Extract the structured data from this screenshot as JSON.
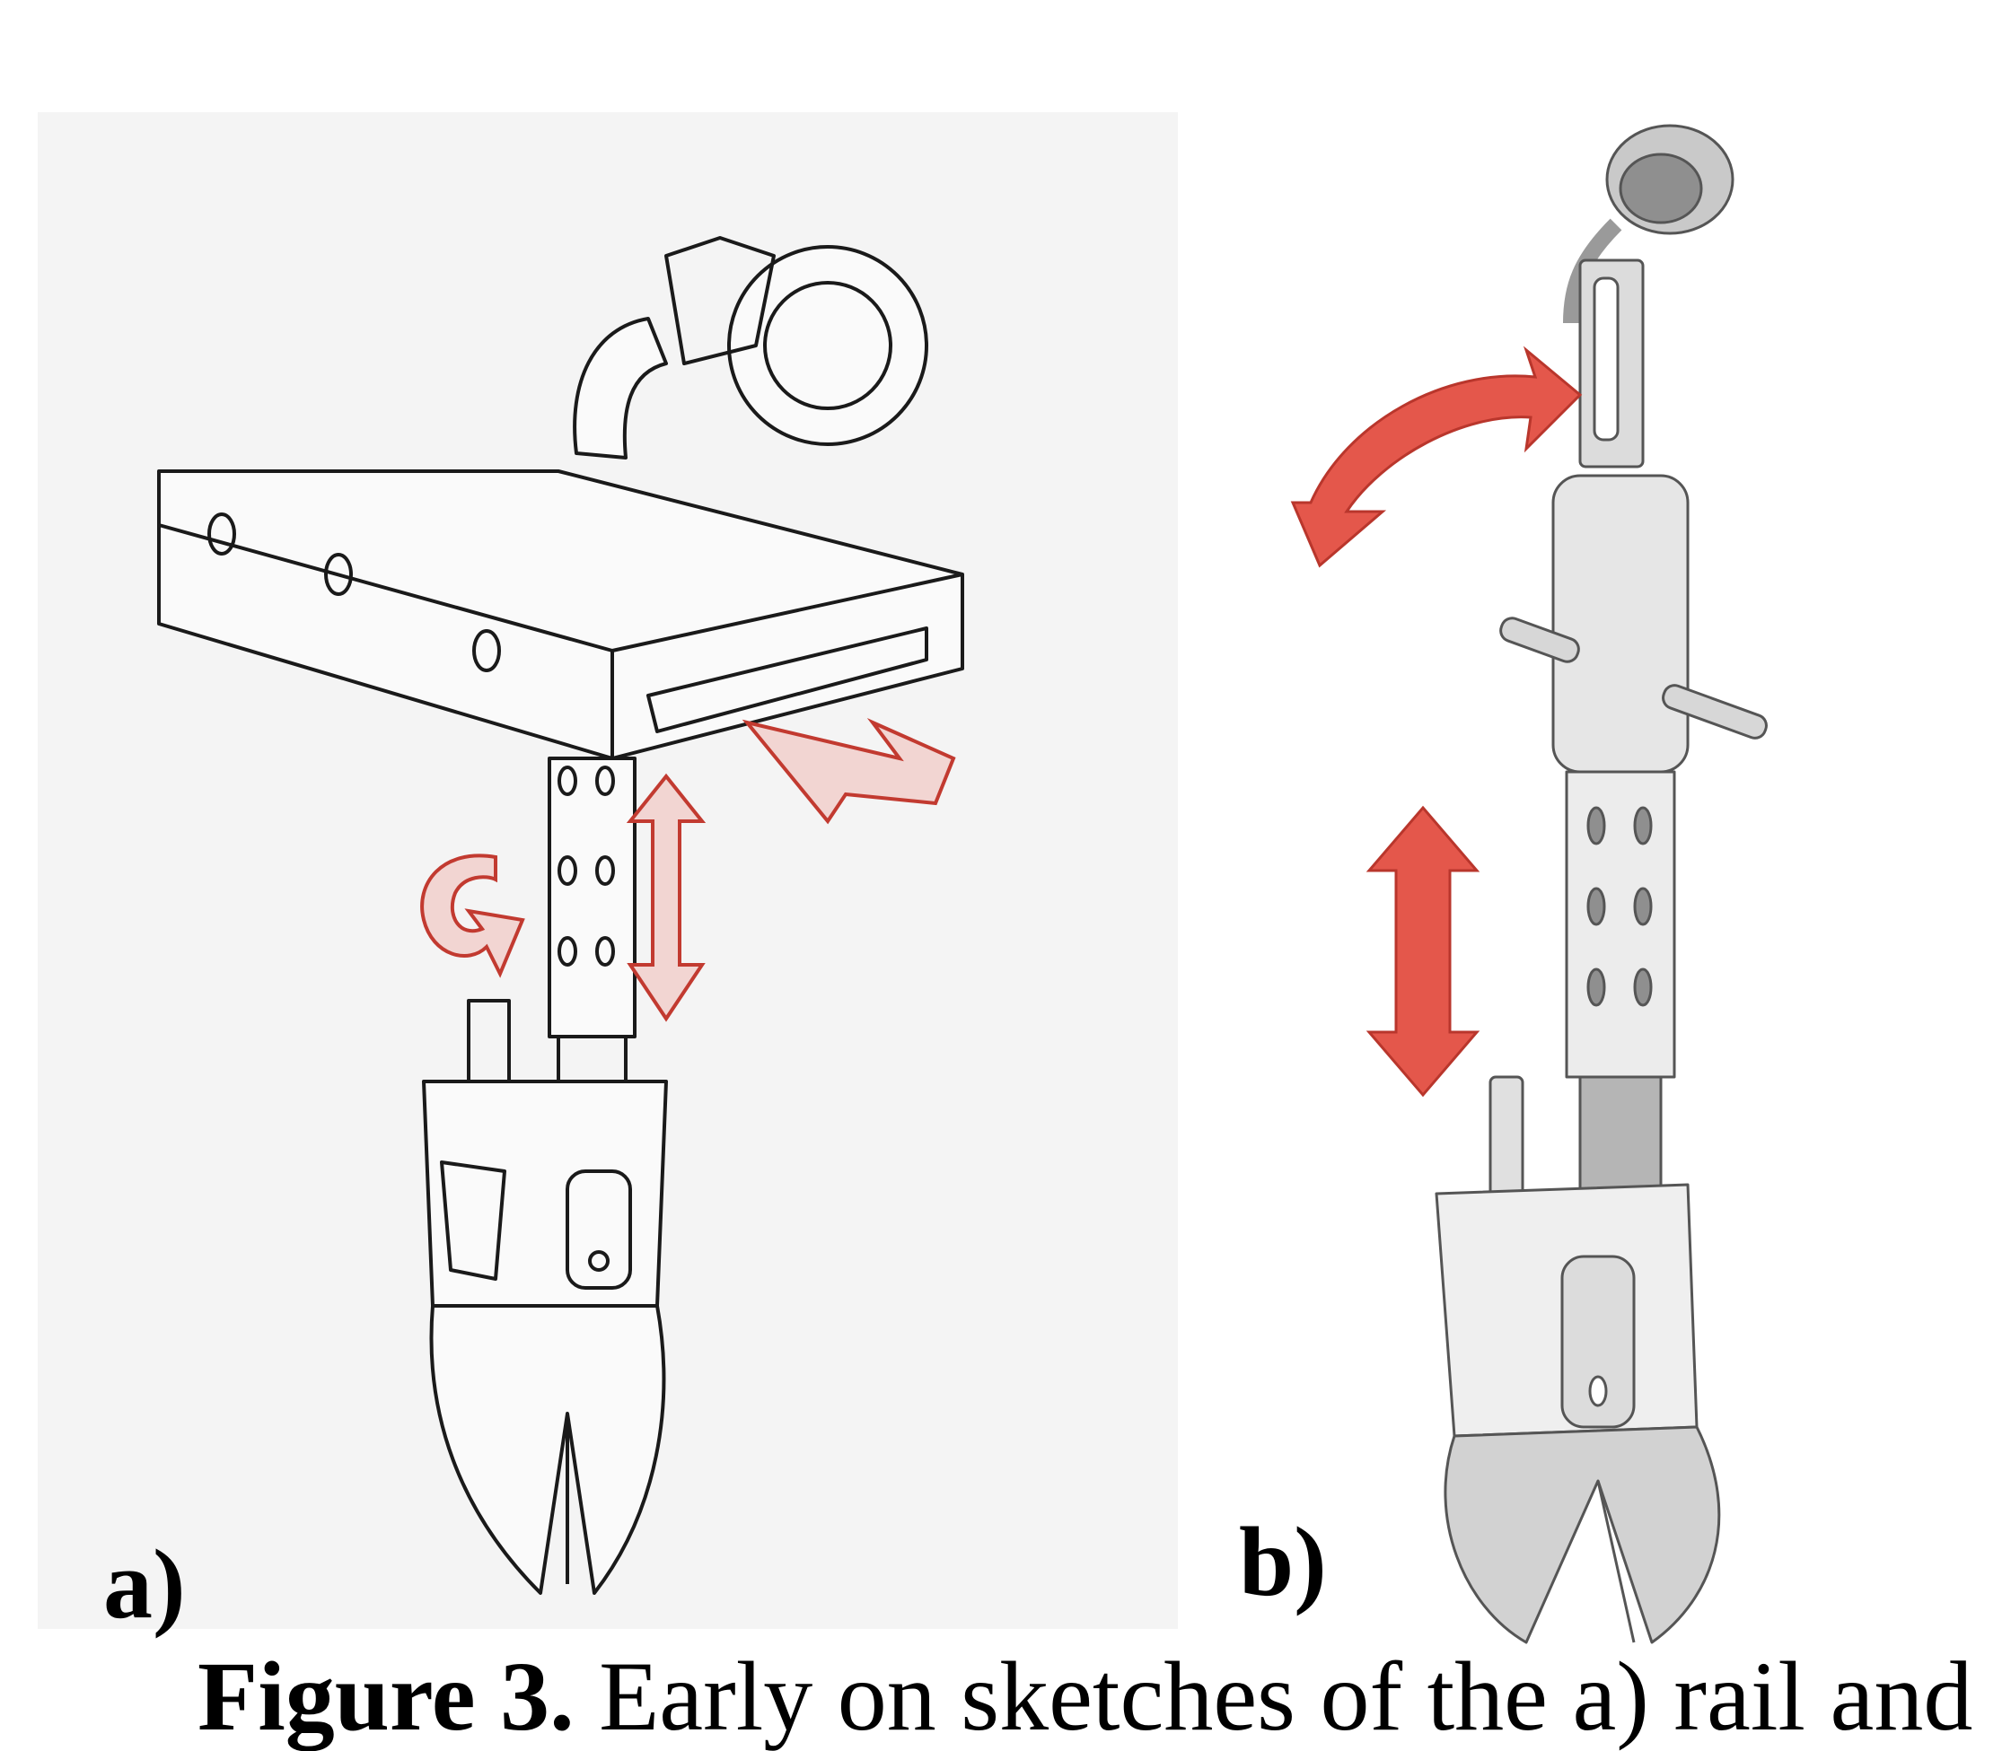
{
  "figure": {
    "panel_a_label": "a)",
    "panel_b_label": "b)",
    "caption_bold": "Figure 3.",
    "caption_text": " Early on sketches of the a) rail and"
  },
  "colors": {
    "accent_red": "#d9473b",
    "line_ink": "#1a1a1a",
    "panel_a_bg": "#f4f4f4",
    "metal_gray": "#b9b9b9"
  }
}
